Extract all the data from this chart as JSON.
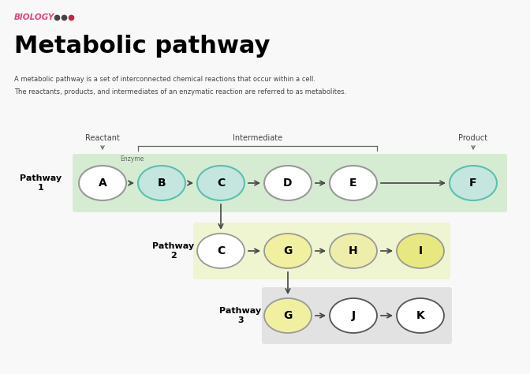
{
  "bg_color": "#f8f8f8",
  "biology_text": "BIOLOGY",
  "biology_color": "#e0457b",
  "dots": [
    {
      "color": "#444444"
    },
    {
      "color": "#444444"
    },
    {
      "color": "#cc2244"
    }
  ],
  "title": "Metabolic pathway",
  "description_line1": "A metabolic pathway is a set of interconnected chemical reactions that occur within a cell.",
  "description_line2": "The reactants, products, and intermediates of an enzymatic reaction are referred to as metabolites.",
  "pathway1_label": "Pathway\n1",
  "pathway2_label": "Pathway\n2",
  "pathway3_label": "Pathway\n3",
  "label_reactant": "Reactant",
  "label_intermediate": "Intermediate",
  "label_product": "Product",
  "enzyme_label": "Enzyme",
  "pathway1_nodes": [
    "A",
    "B",
    "C",
    "D",
    "E",
    "F"
  ],
  "pathway2_nodes": [
    "C",
    "G",
    "H",
    "I"
  ],
  "pathway3_nodes": [
    "G",
    "J",
    "K"
  ],
  "p1_bg": "#d6ecd2",
  "p2_bg": "#eef5d0",
  "p3_bg": "#e2e2e2",
  "node_fill_white": "#ffffff",
  "node_fill_teal": "#c5e5df",
  "node_fill_green_F": "#c5e5df",
  "node_fill_yellow_G": "#f0f0a0",
  "node_fill_yellow_H": "#eeeeaa",
  "node_fill_yellow_I": "#e8e880",
  "node_outline_teal": "#5bbfb0",
  "node_outline_gray": "#999999",
  "node_outline_dark": "#555555",
  "arrow_color": "#444444"
}
